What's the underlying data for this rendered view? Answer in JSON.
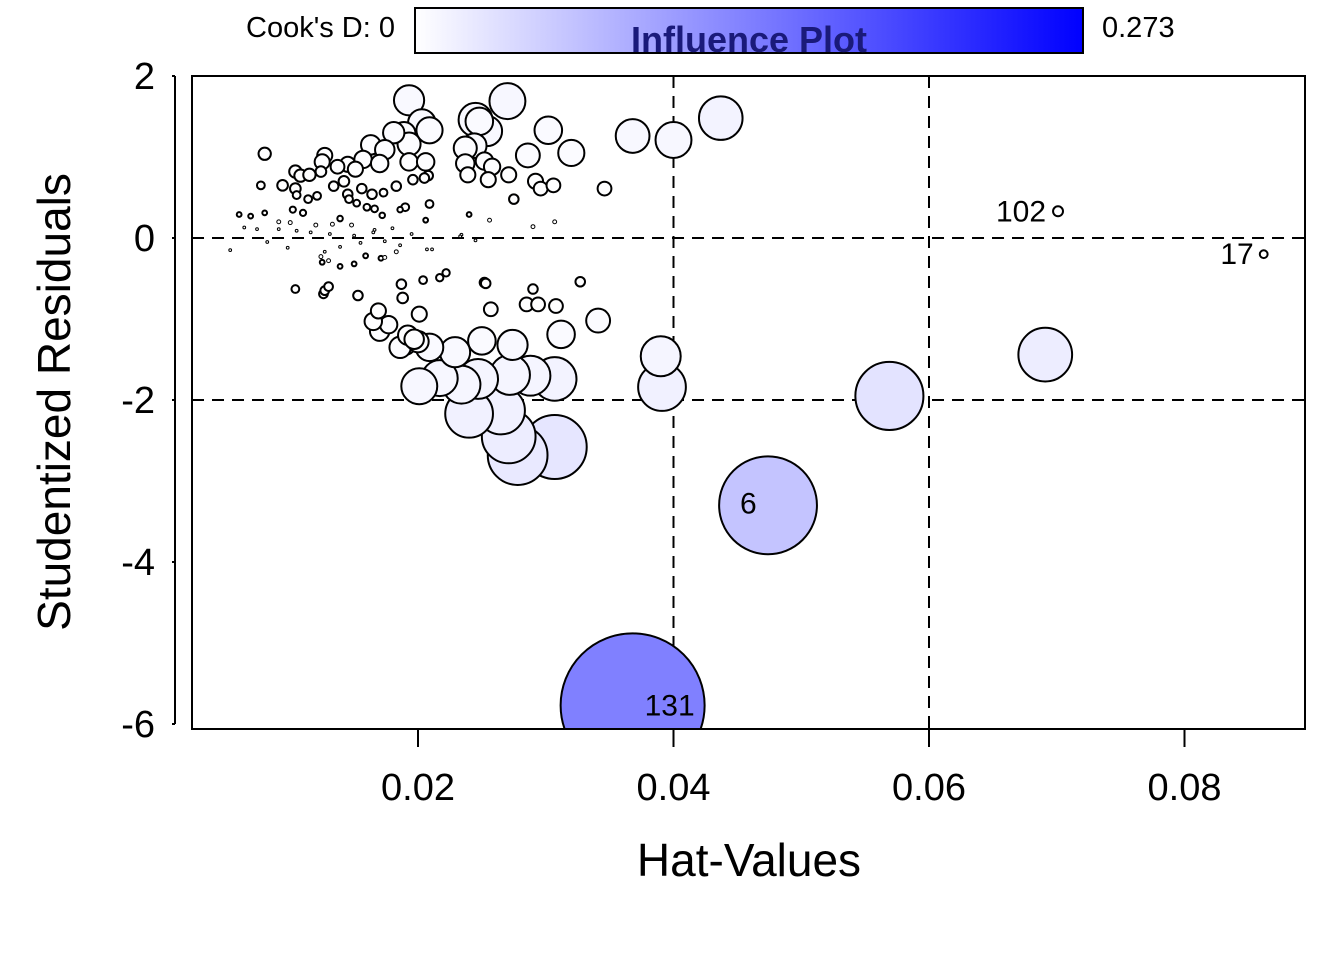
{
  "chart_data": {
    "type": "scatter",
    "title": "Influence Plot",
    "xlabel": "Hat-Values",
    "ylabel": "Studentized Residuals",
    "xlim": [
      0.0025,
      0.09
    ],
    "ylim": [
      -6.06,
      2.0
    ],
    "xticks": [
      0.02,
      0.04,
      0.06,
      0.08
    ],
    "xtick_labels": [
      "0.02",
      "0.04",
      "0.06",
      "0.08"
    ],
    "yticks": [
      2,
      0,
      -2,
      -4,
      -6
    ],
    "ytick_labels": [
      "2",
      "0",
      "-2",
      "-4",
      "-6"
    ],
    "reference_lines": {
      "horizontal": [
        -2,
        0
      ],
      "vertical": [
        0.04,
        0.06
      ],
      "style": "dashed"
    },
    "grid": false,
    "size_encoding": "Cook's D",
    "color_legend": {
      "label_min": "Cook's D: 0",
      "label_max": "0.273",
      "min": 0,
      "max": 0.273,
      "color_low": "#ffffff",
      "color_high": "#0000ff",
      "placement": "top"
    },
    "point_columns": [
      "hat",
      "studentized_residual",
      "cooks_d"
    ],
    "points": [
      [
        0.0368,
        -5.77,
        0.273
      ],
      [
        0.0474,
        -3.3,
        0.126
      ],
      [
        0.0569,
        -1.95,
        0.061
      ],
      [
        0.0691,
        -1.44,
        0.038
      ],
      [
        0.0701,
        0.33,
        0.0013
      ],
      [
        0.0862,
        -0.2,
        0.0008
      ],
      [
        0.0307,
        -2.58,
        0.054
      ],
      [
        0.0278,
        -2.68,
        0.047
      ],
      [
        0.0271,
        -2.45,
        0.038
      ],
      [
        0.0265,
        -2.13,
        0.03
      ],
      [
        0.024,
        -2.17,
        0.03
      ],
      [
        0.0391,
        -1.84,
        0.03
      ],
      [
        0.039,
        -1.46,
        0.021
      ],
      [
        0.0307,
        -1.74,
        0.025
      ],
      [
        0.0288,
        -1.7,
        0.021
      ],
      [
        0.0272,
        -1.69,
        0.021
      ],
      [
        0.0247,
        -1.74,
        0.021
      ],
      [
        0.0234,
        -1.81,
        0.019
      ],
      [
        0.0217,
        -1.73,
        0.017
      ],
      [
        0.0201,
        -1.83,
        0.017
      ],
      [
        0.0229,
        -1.41,
        0.012
      ],
      [
        0.0209,
        -1.35,
        0.01
      ],
      [
        0.0274,
        -1.32,
        0.012
      ],
      [
        0.025,
        -1.27,
        0.01
      ],
      [
        0.0312,
        -1.19,
        0.01
      ],
      [
        0.0341,
        -1.02,
        0.0075
      ],
      [
        0.0437,
        1.48,
        0.025
      ],
      [
        0.04,
        1.21,
        0.017
      ],
      [
        0.0368,
        1.26,
        0.015
      ],
      [
        0.027,
        1.69,
        0.017
      ],
      [
        0.0245,
        1.46,
        0.015
      ],
      [
        0.0254,
        1.32,
        0.012
      ],
      [
        0.0193,
        1.7,
        0.012
      ],
      [
        0.0302,
        1.33,
        0.01
      ],
      [
        0.032,
        1.05,
        0.009
      ],
      [
        0.0286,
        1.02,
        0.0075
      ],
      [
        0.0203,
        1.42,
        0.01
      ],
      [
        0.0209,
        1.33,
        0.009
      ],
      [
        0.0244,
        1.14,
        0.008
      ],
      [
        0.0248,
        1.44,
        0.01
      ],
      [
        0.0237,
        1.11,
        0.007
      ],
      [
        0.0189,
        1.29,
        0.007
      ],
      [
        0.0193,
        1.16,
        0.007
      ],
      [
        0.0181,
        1.3,
        0.006
      ],
      [
        0.0163,
        1.15,
        0.005
      ],
      [
        0.0174,
        1.09,
        0.005
      ],
      [
        0.0157,
        0.97,
        0.004
      ],
      [
        0.017,
        0.92,
        0.004
      ],
      [
        0.0193,
        0.94,
        0.004
      ],
      [
        0.0206,
        0.94,
        0.004
      ],
      [
        0.0237,
        0.92,
        0.0045
      ],
      [
        0.0252,
        0.95,
        0.004
      ],
      [
        0.0258,
        0.88,
        0.0035
      ],
      [
        0.0239,
        0.78,
        0.003
      ],
      [
        0.0255,
        0.72,
        0.003
      ],
      [
        0.0271,
        0.78,
        0.003
      ],
      [
        0.0292,
        0.7,
        0.003
      ],
      [
        0.0296,
        0.61,
        0.0025
      ],
      [
        0.0306,
        0.65,
        0.0025
      ],
      [
        0.0346,
        0.61,
        0.0025
      ],
      [
        0.0145,
        0.91,
        0.003
      ],
      [
        0.0151,
        0.85,
        0.003
      ],
      [
        0.0127,
        1.02,
        0.003
      ],
      [
        0.0125,
        0.94,
        0.003
      ],
      [
        0.0137,
        0.88,
        0.0025
      ],
      [
        0.0104,
        0.82,
        0.002
      ],
      [
        0.0108,
        0.77,
        0.002
      ],
      [
        0.0115,
        0.78,
        0.002
      ],
      [
        0.008,
        1.04,
        0.002
      ],
      [
        0.0094,
        0.65,
        0.0015
      ],
      [
        0.0104,
        0.61,
        0.0015
      ],
      [
        0.0124,
        0.82,
        0.0015
      ],
      [
        0.0142,
        0.7,
        0.0015
      ],
      [
        0.0156,
        0.61,
        0.0012
      ],
      [
        0.0134,
        0.64,
        0.0012
      ],
      [
        0.0145,
        0.54,
        0.0012
      ],
      [
        0.0164,
        0.54,
        0.0012
      ],
      [
        0.0183,
        0.64,
        0.0012
      ],
      [
        0.0196,
        0.72,
        0.0012
      ],
      [
        0.0208,
        0.77,
        0.0012
      ],
      [
        0.0205,
        0.74,
        0.0012
      ],
      [
        0.0173,
        0.56,
        0.0008
      ],
      [
        0.019,
        0.38,
        0.0008
      ],
      [
        0.0209,
        0.42,
        0.0008
      ],
      [
        0.0275,
        0.48,
        0.0012
      ],
      [
        0.0077,
        0.65,
        0.0008
      ],
      [
        0.0105,
        0.53,
        0.0008
      ],
      [
        0.0114,
        0.48,
        0.0008
      ],
      [
        0.0121,
        0.52,
        0.0008
      ],
      [
        0.0146,
        0.48,
        0.0008
      ],
      [
        0.0152,
        0.43,
        0.0006
      ],
      [
        0.0166,
        0.36,
        0.0006
      ],
      [
        0.016,
        0.38,
        0.0006
      ],
      [
        0.0102,
        0.35,
        0.0005
      ],
      [
        0.011,
        0.31,
        0.0005
      ],
      [
        0.0139,
        0.24,
        0.0004
      ],
      [
        0.0172,
        0.28,
        0.0004
      ],
      [
        0.0186,
        0.35,
        0.0004
      ],
      [
        0.0206,
        0.22,
        0.0003
      ],
      [
        0.024,
        0.29,
        0.0003
      ],
      [
        0.0256,
        0.22,
        0.0002
      ],
      [
        0.029,
        0.14,
        0.0002
      ],
      [
        0.0307,
        0.2,
        0.0002
      ],
      [
        0.006,
        0.29,
        0.0003
      ],
      [
        0.0069,
        0.27,
        0.0003
      ],
      [
        0.008,
        0.31,
        0.0003
      ],
      [
        0.0091,
        0.2,
        0.0002
      ],
      [
        0.01,
        0.19,
        0.0002
      ],
      [
        0.012,
        0.16,
        0.0002
      ],
      [
        0.0133,
        0.17,
        0.0002
      ],
      [
        0.0148,
        0.16,
        0.0002
      ],
      [
        0.0166,
        0.1,
        0.0001
      ],
      [
        0.018,
        0.12,
        0.0001
      ],
      [
        0.0064,
        0.13,
        0.0001
      ],
      [
        0.0074,
        0.11,
        0.0001
      ],
      [
        0.0091,
        0.11,
        0.0001
      ],
      [
        0.0105,
        0.09,
        0.0001
      ],
      [
        0.0116,
        0.07,
        0.0001
      ],
      [
        0.0131,
        0.05,
        0.0001
      ],
      [
        0.015,
        0.03,
        0.0001
      ],
      [
        0.0165,
        0.07,
        0.0001
      ],
      [
        0.0195,
        0.05,
        0.0001
      ],
      [
        0.0234,
        0.04,
        0.0001
      ],
      [
        0.0053,
        -0.15,
        0.0001
      ],
      [
        0.0082,
        -0.05,
        0.0001
      ],
      [
        0.0098,
        -0.12,
        0.0001
      ],
      [
        0.0127,
        -0.17,
        0.0001
      ],
      [
        0.0139,
        -0.11,
        0.0001
      ],
      [
        0.0155,
        -0.06,
        0.0001
      ],
      [
        0.0174,
        -0.04,
        0.0001
      ],
      [
        0.0186,
        -0.09,
        0.0001
      ],
      [
        0.0207,
        -0.14,
        0.0001
      ],
      [
        0.0211,
        -0.14,
        0.0001
      ],
      [
        0.0245,
        -0.03,
        0.0001
      ],
      [
        0.0233,
        0.02,
        0.0001
      ],
      [
        0.0124,
        -0.23,
        0.0002
      ],
      [
        0.013,
        -0.28,
        0.0002
      ],
      [
        0.015,
        -0.32,
        0.0003
      ],
      [
        0.0171,
        -0.25,
        0.0003
      ],
      [
        0.0174,
        -0.24,
        0.0002
      ],
      [
        0.0125,
        -0.3,
        0.0003
      ],
      [
        0.0139,
        -0.35,
        0.0003
      ],
      [
        0.0159,
        -0.22,
        0.0003
      ],
      [
        0.0183,
        -0.17,
        0.0002
      ],
      [
        0.0204,
        -0.52,
        0.0008
      ],
      [
        0.0217,
        -0.49,
        0.0007
      ],
      [
        0.0222,
        -0.43,
        0.0007
      ],
      [
        0.0252,
        -0.55,
        0.0012
      ],
      [
        0.0253,
        -0.56,
        0.0012
      ],
      [
        0.0327,
        -0.54,
        0.0012
      ],
      [
        0.029,
        -0.63,
        0.0012
      ],
      [
        0.0104,
        -0.63,
        0.0008
      ],
      [
        0.0126,
        -0.69,
        0.001
      ],
      [
        0.0127,
        -0.65,
        0.001
      ],
      [
        0.013,
        -0.6,
        0.001
      ],
      [
        0.0153,
        -0.71,
        0.0012
      ],
      [
        0.0187,
        -0.57,
        0.0012
      ],
      [
        0.0188,
        -0.74,
        0.0015
      ],
      [
        0.0257,
        -0.88,
        0.0025
      ],
      [
        0.0285,
        -0.82,
        0.0025
      ],
      [
        0.0294,
        -0.82,
        0.0025
      ],
      [
        0.0308,
        -0.84,
        0.0025
      ],
      [
        0.0201,
        -0.94,
        0.003
      ],
      [
        0.0169,
        -0.9,
        0.003
      ],
      [
        0.0177,
        -1.07,
        0.004
      ],
      [
        0.0165,
        -1.03,
        0.004
      ],
      [
        0.017,
        -1.15,
        0.005
      ],
      [
        0.0192,
        -1.2,
        0.005
      ],
      [
        0.0197,
        -1.25,
        0.005
      ],
      [
        0.019,
        -1.31,
        0.006
      ],
      [
        0.0186,
        -1.35,
        0.006
      ],
      [
        0.02,
        -1.28,
        0.006
      ]
    ],
    "labeled_points": [
      {
        "label": "131",
        "hat": 0.0368,
        "studentized_residual": -5.77
      },
      {
        "label": "6",
        "hat": 0.0474,
        "studentized_residual": -3.3
      },
      {
        "label": "102",
        "hat": 0.0701,
        "studentized_residual": 0.33
      },
      {
        "label": "17",
        "hat": 0.0862,
        "studentized_residual": -0.2
      }
    ]
  }
}
